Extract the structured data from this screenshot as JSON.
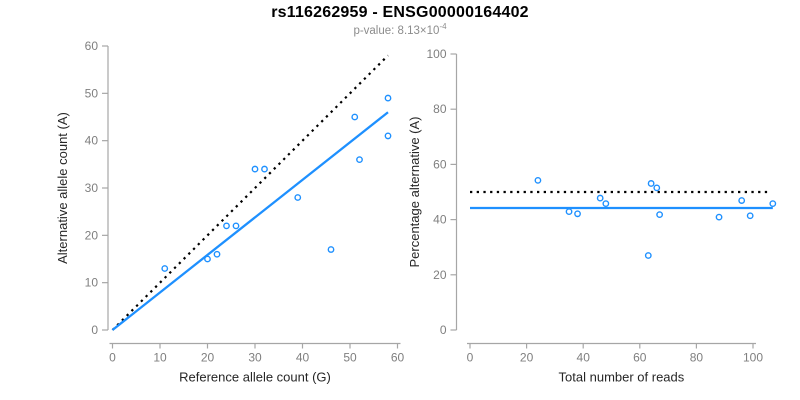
{
  "header": {
    "title": "rs116262959 - ENSG00000164402",
    "subtitle_prefix": "p-value: 8.13×10",
    "subtitle_exponent": "-4"
  },
  "colors": {
    "point_blue": "#1E90FF",
    "fit_blue": "#1E90FF",
    "identity_black": "#000000",
    "axis_line_gray": "#A6A6A6",
    "tick_label_gray": "#7F7F7F",
    "axis_title_dark": "#262626",
    "subtitle_gray": "#8C8C8C",
    "title_black": "#000000",
    "background": "#FFFFFF"
  },
  "chart_data": [
    {
      "id": "allele-counts-scatter",
      "type": "scatter",
      "xlabel": "Reference allele count (G)",
      "ylabel": "Alternative allele count (A)",
      "xlim": [
        0,
        60
      ],
      "ylim": [
        0,
        60
      ],
      "xticks": [
        0,
        10,
        20,
        30,
        40,
        50,
        60
      ],
      "yticks": [
        0,
        10,
        20,
        30,
        40,
        50,
        60
      ],
      "grid": false,
      "legend": null,
      "marker": "open-circle",
      "points": [
        [
          11,
          13
        ],
        [
          20,
          15
        ],
        [
          22,
          16
        ],
        [
          24,
          22
        ],
        [
          26,
          22
        ],
        [
          30,
          34
        ],
        [
          32,
          34
        ],
        [
          39,
          28
        ],
        [
          46,
          17
        ],
        [
          51,
          45
        ],
        [
          52,
          36
        ],
        [
          58,
          41
        ],
        [
          58,
          49
        ]
      ],
      "lines": [
        {
          "name": "identity-line",
          "style": "dotted",
          "color": "#000000",
          "x1": 0,
          "y1": 0,
          "x2": 58,
          "y2": 58
        },
        {
          "name": "fit-line",
          "style": "solid",
          "color": "#1E90FF",
          "x1": 0,
          "y1": 0,
          "x2": 58,
          "y2": 46
        }
      ]
    },
    {
      "id": "percentage-scatter",
      "type": "scatter",
      "xlabel": "Total number of reads",
      "ylabel": "Percentage alternative (A)",
      "xlim": [
        0,
        107
      ],
      "ylim": [
        0,
        100
      ],
      "xticks": [
        0,
        20,
        40,
        60,
        80,
        100
      ],
      "yticks": [
        0,
        20,
        40,
        60,
        80,
        100
      ],
      "grid": false,
      "legend": null,
      "marker": "open-circle",
      "points": [
        [
          24,
          54.2
        ],
        [
          35,
          42.9
        ],
        [
          38,
          42.1
        ],
        [
          46,
          47.8
        ],
        [
          48,
          45.8
        ],
        [
          63,
          27.0
        ],
        [
          64,
          53.1
        ],
        [
          66,
          51.5
        ],
        [
          67,
          41.8
        ],
        [
          88,
          40.9
        ],
        [
          96,
          46.9
        ],
        [
          99,
          41.4
        ],
        [
          107,
          45.8
        ]
      ],
      "lines": [
        {
          "name": "expected-50pct-line",
          "style": "dotted",
          "color": "#000000",
          "x1": 0,
          "y1": 50,
          "x2": 106,
          "y2": 50
        },
        {
          "name": "mean-percentage-line",
          "style": "solid",
          "color": "#1E90FF",
          "x1": 0,
          "y1": 44.2,
          "x2": 107,
          "y2": 44.2
        }
      ]
    }
  ]
}
